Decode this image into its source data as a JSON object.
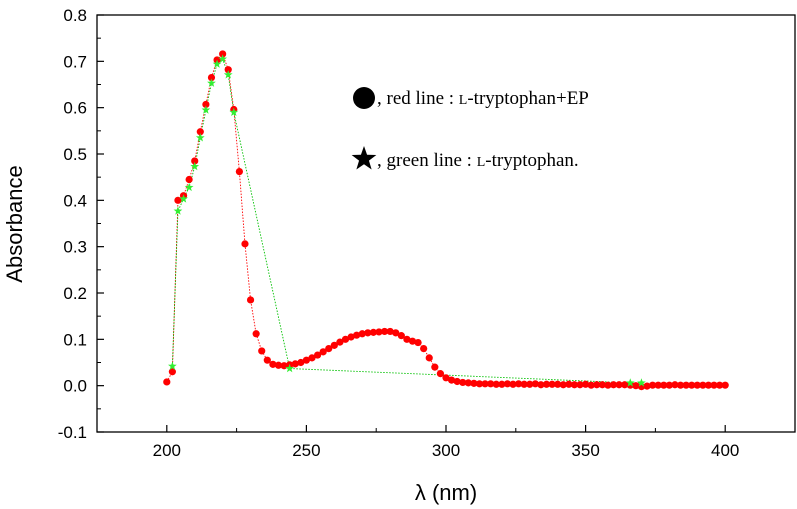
{
  "chart_data": {
    "type": "scatter",
    "title": "",
    "xlabel": "λ (nm)",
    "ylabel": "Absorbance",
    "xlim": [
      175,
      425
    ],
    "ylim": [
      -0.1,
      0.8
    ],
    "xticks": [
      200,
      250,
      300,
      350,
      400
    ],
    "xtick_labels": [
      "200",
      "250",
      "300",
      "350",
      "400"
    ],
    "yticks": [
      -0.1,
      0.0,
      0.1,
      0.2,
      0.3,
      0.4,
      0.5,
      0.6,
      0.7,
      0.8
    ],
    "ytick_labels": [
      "-0.1",
      "0.0",
      "0.1",
      "0.2",
      "0.3",
      "0.4",
      "0.5",
      "0.6",
      "0.7",
      "0.8"
    ],
    "grid": false,
    "legend": [
      {
        "marker": "circle",
        "color": "#000000",
        "prefix": ", red line : ",
        "smallcaps": "L",
        "text": "-tryptophan+EP"
      },
      {
        "marker": "star",
        "color": "#000000",
        "prefix": ", green line : ",
        "smallcaps": "L",
        "text": "-tryptophan."
      }
    ],
    "series": [
      {
        "name": "L-tryptophan+EP",
        "line_color": "#ff0000",
        "marker": "circle",
        "marker_color": "#ff0000",
        "x": [
          200,
          202,
          204,
          206,
          208,
          210,
          212,
          214,
          216,
          218,
          220,
          222,
          224,
          226,
          228,
          230,
          232,
          234,
          236,
          238,
          240,
          242,
          244,
          246,
          248,
          250,
          252,
          254,
          256,
          258,
          260,
          262,
          264,
          266,
          268,
          270,
          272,
          274,
          276,
          278,
          280,
          282,
          284,
          286,
          288,
          290,
          292,
          294,
          296,
          298,
          300,
          302,
          304,
          306,
          308,
          310,
          312,
          314,
          316,
          318,
          320,
          322,
          324,
          326,
          328,
          330,
          332,
          334,
          336,
          338,
          340,
          342,
          344,
          346,
          348,
          350,
          352,
          354,
          356,
          358,
          360,
          362,
          364,
          366,
          368,
          370,
          372,
          374,
          376,
          378,
          380,
          382,
          384,
          386,
          388,
          390,
          392,
          394,
          396,
          398,
          400
        ],
        "y": [
          0.008,
          0.03,
          0.4,
          0.41,
          0.445,
          0.485,
          0.548,
          0.607,
          0.665,
          0.703,
          0.716,
          0.682,
          0.596,
          0.462,
          0.306,
          0.185,
          0.112,
          0.075,
          0.055,
          0.046,
          0.044,
          0.043,
          0.045,
          0.047,
          0.05,
          0.055,
          0.06,
          0.066,
          0.073,
          0.08,
          0.087,
          0.094,
          0.1,
          0.105,
          0.109,
          0.112,
          0.114,
          0.115,
          0.116,
          0.117,
          0.117,
          0.114,
          0.108,
          0.1,
          0.096,
          0.093,
          0.08,
          0.06,
          0.04,
          0.026,
          0.017,
          0.012,
          0.009,
          0.007,
          0.006,
          0.005,
          0.004,
          0.004,
          0.004,
          0.003,
          0.003,
          0.004,
          0.003,
          0.004,
          0.003,
          0.003,
          0.004,
          0.002,
          0.003,
          0.003,
          0.003,
          0.002,
          0.003,
          0.002,
          0.002,
          0.003,
          0.001,
          0.002,
          0.002,
          0.001,
          0.002,
          0.002,
          0.002,
          0.001,
          0.0,
          -0.002,
          -0.001,
          0.001,
          0.001,
          0.001,
          0.001,
          0.002,
          0.001,
          0.001,
          0.001,
          0.001,
          0.001,
          0.001,
          0.001,
          0.001,
          0.001
        ]
      },
      {
        "name": "L-tryptophan",
        "line_color": "#00c000",
        "marker": "star",
        "marker_color": "#33ee33",
        "x": [
          202,
          204,
          206,
          208,
          210,
          212,
          214,
          216,
          218,
          220,
          222,
          224,
          244,
          366,
          370
        ],
        "y": [
          0.042,
          0.377,
          0.403,
          0.428,
          0.473,
          0.535,
          0.595,
          0.653,
          0.694,
          0.705,
          0.671,
          0.59,
          0.037,
          0.006,
          0.006
        ]
      }
    ]
  }
}
